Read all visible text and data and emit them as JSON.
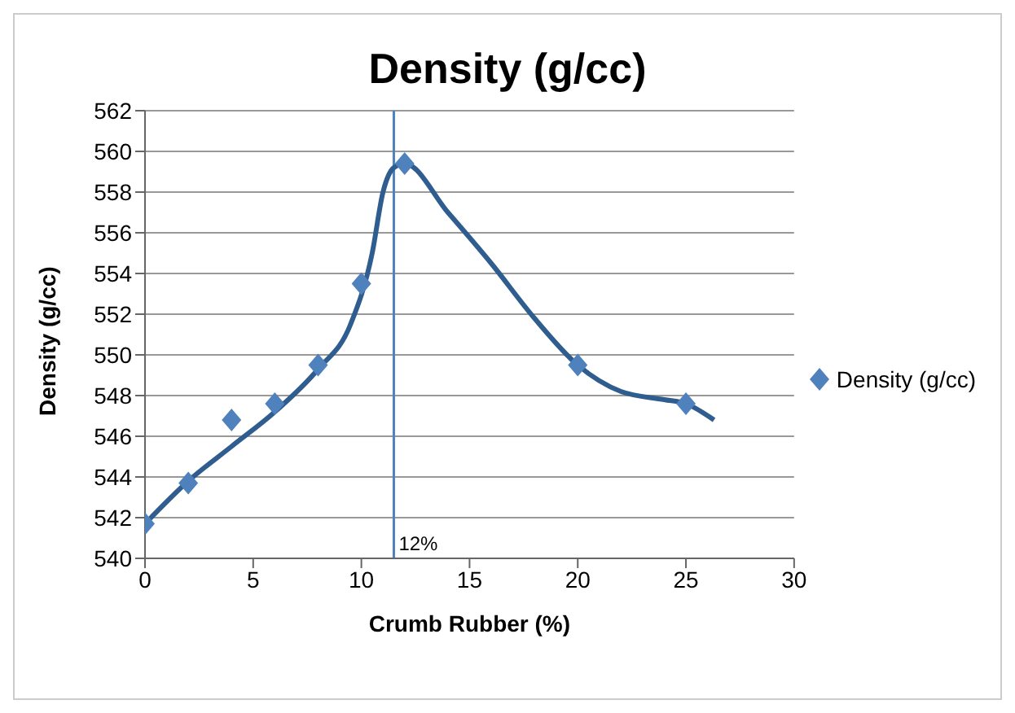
{
  "chart_data": {
    "type": "scatter",
    "title": "Density (g/cc)",
    "xlabel": "Crumb Rubber (%)",
    "ylabel": "Density (g/cc)",
    "series": [
      {
        "name": "Density (g/cc)",
        "color": "#4f81bd",
        "marker": "diamond",
        "x": [
          0,
          2,
          4,
          6,
          8,
          10,
          12,
          20,
          25
        ],
        "values": [
          541.7,
          543.7,
          546.8,
          547.6,
          549.5,
          553.5,
          559.4,
          549.5,
          547.6
        ]
      },
      {
        "type": "line",
        "color": "#2f5d8f",
        "marker": "none",
        "x": [
          0,
          2,
          4,
          6,
          8,
          9.5,
          10.5,
          11,
          11.5,
          12,
          14,
          16,
          18,
          20,
          22,
          24,
          25,
          26.3
        ],
        "values": [
          541.7,
          543.8,
          545.5,
          547.2,
          549.3,
          551.5,
          555,
          558,
          559.2,
          559.4,
          557,
          554.5,
          551.8,
          549.5,
          548.2,
          547.8,
          547.6,
          546.8
        ]
      }
    ],
    "xlim": [
      0,
      30
    ],
    "xticks": [
      0,
      5,
      10,
      15,
      20,
      25,
      30
    ],
    "ylim": [
      540,
      562
    ],
    "yticks": [
      540,
      542,
      544,
      546,
      548,
      550,
      552,
      554,
      556,
      558,
      560,
      562
    ],
    "grid": "y",
    "legend": "right",
    "ref_lines": [
      {
        "axis": "x",
        "value": 11.5,
        "label": "12%",
        "color": "#4f81bd"
      }
    ]
  }
}
